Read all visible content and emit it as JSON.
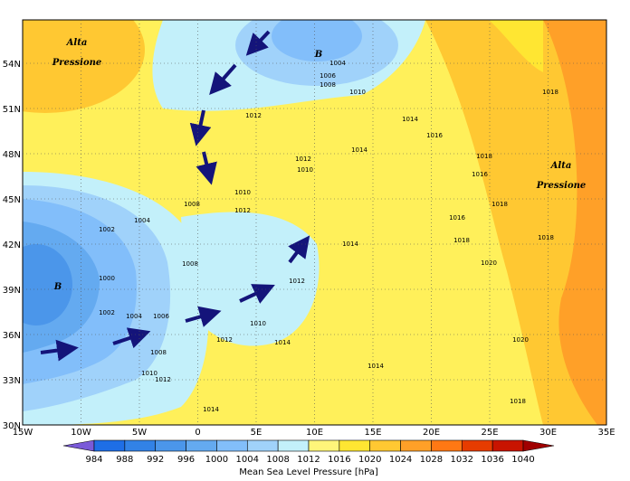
{
  "map": {
    "lon_ticks": [
      "15W",
      "10W",
      "5W",
      "0",
      "5E",
      "10E",
      "15E",
      "20E",
      "25E",
      "30E",
      "35E"
    ],
    "lat_ticks": [
      "30N",
      "33N",
      "36N",
      "39N",
      "42N",
      "45N",
      "48N",
      "51N",
      "54N"
    ],
    "annotations": [
      {
        "line1": "Alta",
        "line2": "Pressione"
      },
      {
        "line1": "Alta",
        "line2": "Pressione"
      },
      {
        "line1": "B"
      },
      {
        "line1": "B"
      }
    ],
    "isobar_labels": [
      "1004",
      "1006",
      "1008",
      "1010",
      "1012",
      "1018",
      "1014",
      "1014",
      "1016",
      "1018",
      "1018",
      "1012",
      "1010",
      "1008",
      "1004",
      "1002",
      "1000",
      "1002",
      "1004",
      "1006",
      "1008",
      "1008",
      "1010",
      "1012",
      "1014",
      "1012",
      "1010",
      "1014",
      "1016",
      "1018",
      "1020",
      "1020",
      "1018",
      "1014",
      "1016",
      "1012",
      "1018",
      "1014",
      "1010",
      "1012"
    ]
  },
  "colorbar": {
    "title": "Mean Sea Level Pressure [hPa]",
    "levels": [
      984,
      988,
      992,
      996,
      1000,
      1004,
      1008,
      1012,
      1016,
      1020,
      1024,
      1028,
      1032,
      1036,
      1040
    ],
    "colors": [
      "#7a5ad8",
      "#1e6ee6",
      "#3282e6",
      "#4b96ea",
      "#64aaf0",
      "#82befa",
      "#a0d2fa",
      "#c3f0fa",
      "#fff57a",
      "#ffe632",
      "#ffc832",
      "#ffa028",
      "#ff7814",
      "#e63c00",
      "#c81400",
      "#a00000"
    ]
  }
}
